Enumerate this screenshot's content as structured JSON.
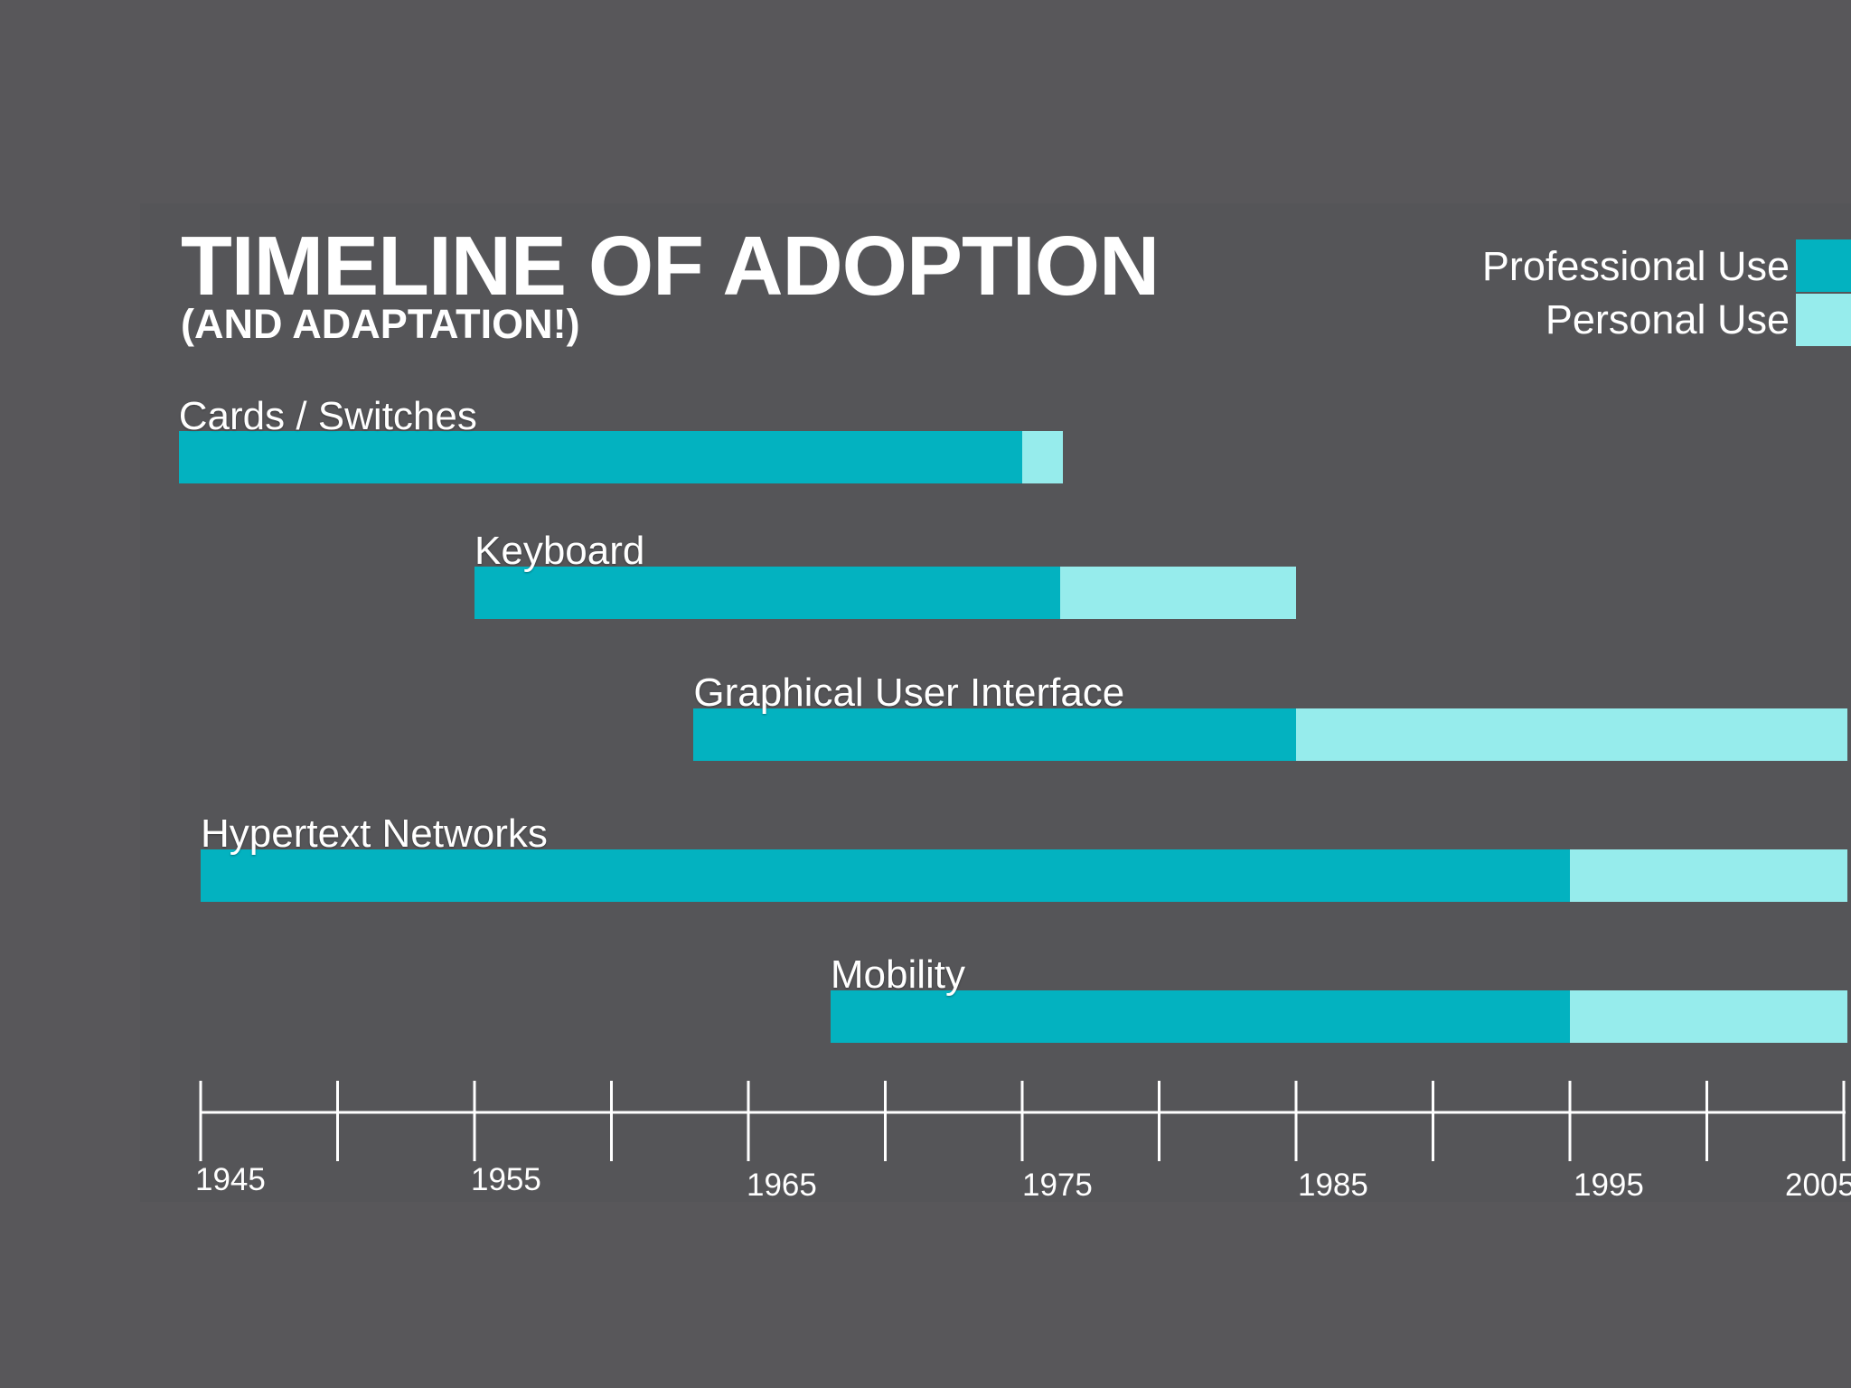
{
  "colors": {
    "background": "#58575a",
    "professional": "#03b2c0",
    "personal": "#96ecec",
    "text": "#ffffff"
  },
  "chart_data": {
    "type": "bar",
    "orientation": "horizontal-timeline",
    "title": "TIMELINE OF ADOPTION",
    "subtitle": "(AND ADAPTATION!)",
    "legend": [
      {
        "name": "Professional Use",
        "color": "#03b2c0"
      },
      {
        "name": "Personal Use",
        "color": "#96ecec"
      }
    ],
    "series_names": [
      "Professional Use",
      "Personal Use"
    ],
    "items": [
      {
        "name": "Cards / Switches",
        "start": 1944.2,
        "professional_end": 1975.0,
        "personal_end": 1976.5
      },
      {
        "name": "Keyboard",
        "start": 1955.0,
        "professional_end": 1976.4,
        "personal_end": 1985.0
      },
      {
        "name": "Graphical User Interface",
        "start": 1963.0,
        "professional_end": 1985.0,
        "personal_end": 2005.3
      },
      {
        "name": "Hypertext Networks",
        "start": 1945.0,
        "professional_end": 1995.0,
        "personal_end": 2005.3
      },
      {
        "name": "Mobility",
        "start": 1968.0,
        "professional_end": 1995.0,
        "personal_end": 2005.3
      }
    ],
    "xlim": [
      1945,
      2005
    ],
    "major_ticks": [
      1945,
      1955,
      1965,
      1975,
      1985,
      1995,
      2005
    ],
    "minor_ticks": [
      1950,
      1960,
      1970,
      1980,
      1990,
      2000
    ],
    "tick_labels": [
      "1945",
      "1955",
      "1965",
      "1975",
      "1985",
      "1995",
      "2005"
    ]
  }
}
